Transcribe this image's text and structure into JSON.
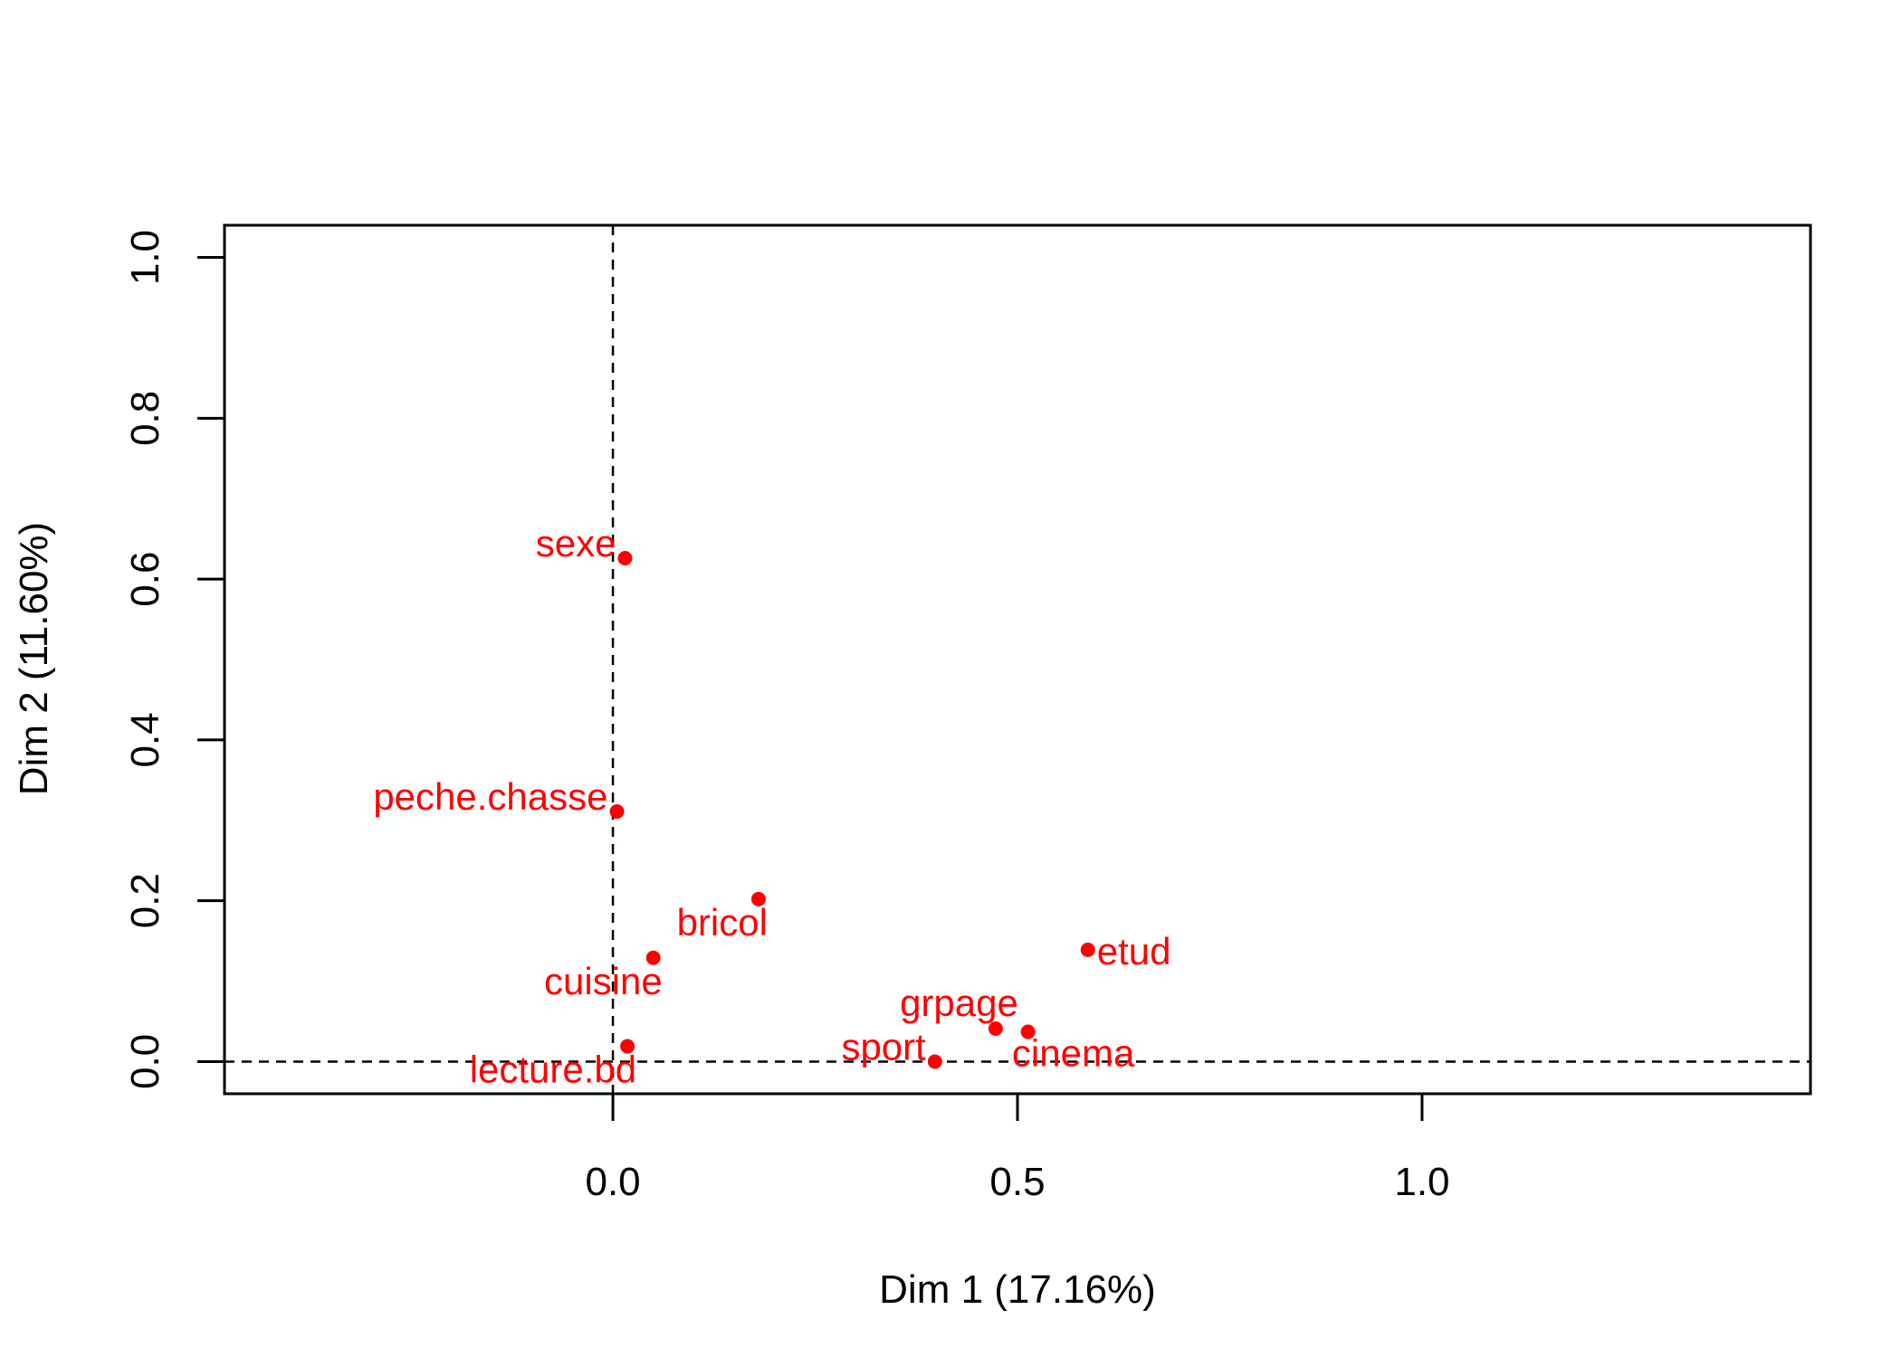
{
  "chart_data": {
    "type": "scatter",
    "title": "",
    "xlabel": "Dim 1 (17.16%)",
    "ylabel": "Dim 2 (11.60%)",
    "xlim": [
      -0.48,
      1.48
    ],
    "ylim": [
      -0.04,
      1.04
    ],
    "x_ticks": [
      0.0,
      0.5,
      1.0
    ],
    "x_tick_labels": [
      "0.0",
      "0.5",
      "1.0"
    ],
    "y_ticks": [
      0.0,
      0.2,
      0.4,
      0.6,
      0.8,
      1.0
    ],
    "y_tick_labels": [
      "0.0",
      "0.2",
      "0.4",
      "0.6",
      "0.8",
      "1.0"
    ],
    "reference_lines": {
      "x": 0,
      "y": 0,
      "style": "dashed"
    },
    "point_color": "#ff0000",
    "points": [
      {
        "label": "sexe",
        "x": 0.015,
        "y": 0.626,
        "label_pos": "left"
      },
      {
        "label": "peche.chasse",
        "x": 0.005,
        "y": 0.311,
        "label_pos": "left"
      },
      {
        "label": "bricol",
        "x": 0.18,
        "y": 0.202,
        "label_pos": "below-left"
      },
      {
        "label": "cuisine",
        "x": 0.05,
        "y": 0.129,
        "label_pos": "below-left"
      },
      {
        "label": "lecture.bd",
        "x": 0.018,
        "y": 0.019,
        "label_pos": "below-left"
      },
      {
        "label": "etud",
        "x": 0.587,
        "y": 0.139,
        "label_pos": "right"
      },
      {
        "label": "grpage",
        "x": 0.473,
        "y": 0.041,
        "label_pos": "above-left"
      },
      {
        "label": "cinema",
        "x": 0.513,
        "y": 0.037,
        "label_pos": "below"
      },
      {
        "label": "sport",
        "x": 0.398,
        "y": 0.0,
        "label_pos": "left"
      }
    ]
  }
}
